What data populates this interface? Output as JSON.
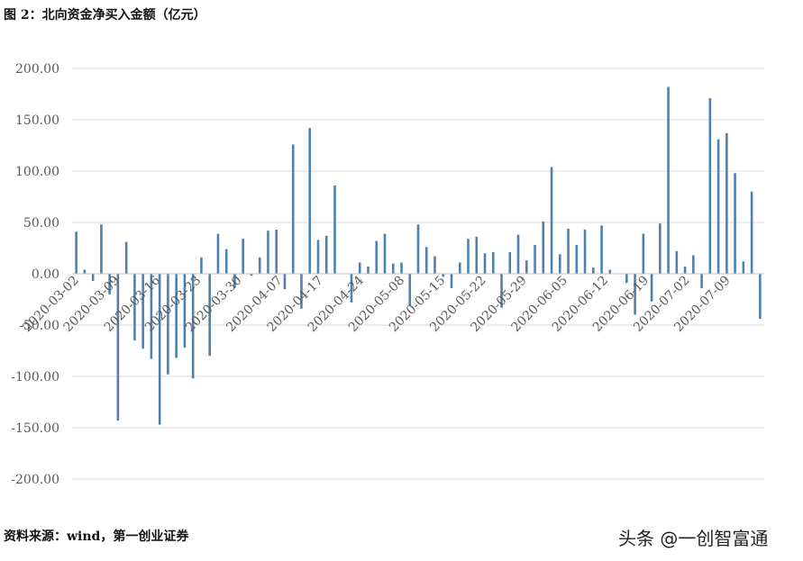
{
  "title": "图 2：北向资金净买入金额（亿元）",
  "source": "资料来源：wind，第一创业证券",
  "watermark": "头条 @一创智富通",
  "colors": {
    "bar": "#4e81b0",
    "grid": "#d9d9d9",
    "axis_text": "#595959"
  },
  "chart_data": {
    "type": "bar",
    "title": "北向资金净买入金额（亿元）",
    "xlabel": "",
    "ylabel": "",
    "ylim": [
      -200,
      200
    ],
    "yticks": [
      "200.00",
      "150.00",
      "100.00",
      "50.00",
      "0.00",
      "-50.00",
      "-100.00",
      "-150.00",
      "-200.00"
    ],
    "grid": true,
    "x_tick_labels": [
      "2020-03-02",
      "2020-03-09",
      "2020-03-16",
      "2020-03-23",
      "2020-03-30",
      "2020-04-07",
      "2020-04-17",
      "2020-04-24",
      "2020-05-08",
      "2020-05-15",
      "2020-05-22",
      "2020-05-29",
      "2020-06-05",
      "2020-06-12",
      "2020-06-19",
      "2020-07-02",
      "2020-07-09"
    ],
    "values": [
      41,
      4,
      -7,
      48,
      -20,
      -143,
      31,
      -65,
      -73,
      -83,
      -147,
      -98,
      -82,
      -72,
      -102,
      16,
      -80,
      39,
      24,
      -14,
      34,
      -2,
      16,
      42,
      43,
      -15,
      126,
      -34,
      142,
      33,
      37,
      86,
      0,
      -28,
      11,
      7,
      32,
      39,
      10,
      11,
      -31,
      48,
      26,
      17,
      -3,
      -14,
      11,
      34,
      36,
      20,
      21,
      -33,
      21,
      38,
      13,
      28,
      51,
      104,
      19,
      44,
      28,
      43,
      6,
      47,
      4,
      0,
      -9,
      -40,
      39,
      -27,
      49,
      182,
      22,
      7,
      18,
      -14,
      171,
      131,
      137,
      98,
      12,
      80,
      -44
    ]
  }
}
